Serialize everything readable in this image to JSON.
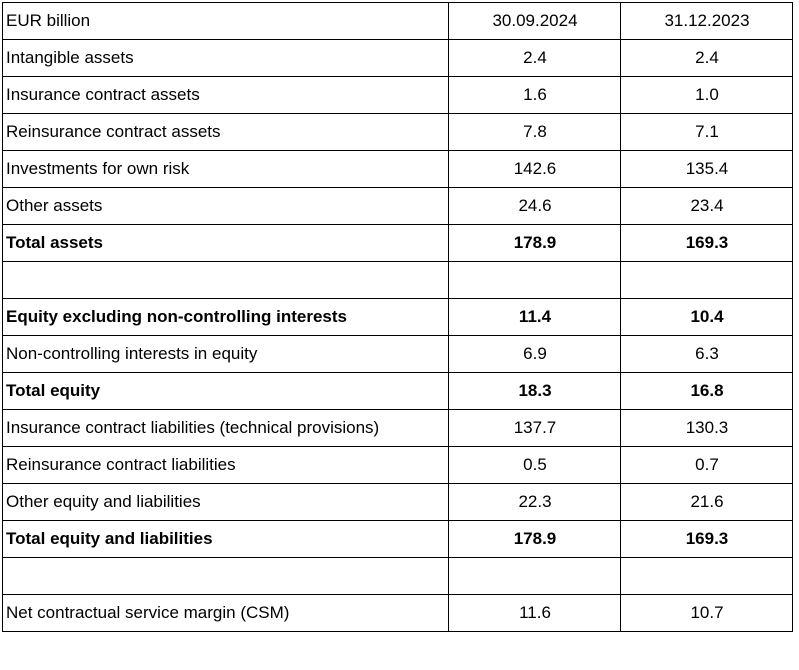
{
  "table": {
    "header": {
      "col0": "EUR billion",
      "col1": "30.09.2024",
      "col2": "31.12.2023"
    },
    "rows": [
      {
        "label": "Intangible assets",
        "v1": "2.4",
        "v2": "2.4"
      },
      {
        "label": "Insurance contract assets",
        "v1": "1.6",
        "v2": "1.0"
      },
      {
        "label": "Reinsurance contract assets",
        "v1": "7.8",
        "v2": "7.1"
      },
      {
        "label": "Investments for own risk",
        "v1": "142.6",
        "v2": "135.4"
      },
      {
        "label": "Other assets",
        "v1": "24.6",
        "v2": "23.4"
      },
      {
        "label": "Total assets",
        "v1": "178.9",
        "v2": "169.3"
      },
      {
        "label": "",
        "v1": "",
        "v2": ""
      },
      {
        "label": "Equity excluding non-controlling interests",
        "v1": "11.4",
        "v2": "10.4"
      },
      {
        "label": "Non-controlling interests in equity",
        "v1": "6.9",
        "v2": "6.3"
      },
      {
        "label": "Total equity",
        "v1": "18.3",
        "v2": "16.8"
      },
      {
        "label": "Insurance contract liabilities (technical provisions)",
        "v1": "137.7",
        "v2": "130.3"
      },
      {
        "label": "Reinsurance contract liabilities",
        "v1": "0.5",
        "v2": "0.7"
      },
      {
        "label": "Other equity and liabilities",
        "v1": "22.3",
        "v2": "21.6"
      },
      {
        "label": "Total equity and liabilities",
        "v1": "178.9",
        "v2": "169.3"
      },
      {
        "label": "",
        "v1": "",
        "v2": ""
      },
      {
        "label": "Net contractual service margin (CSM)",
        "v1": "11.6",
        "v2": "10.7"
      }
    ]
  }
}
